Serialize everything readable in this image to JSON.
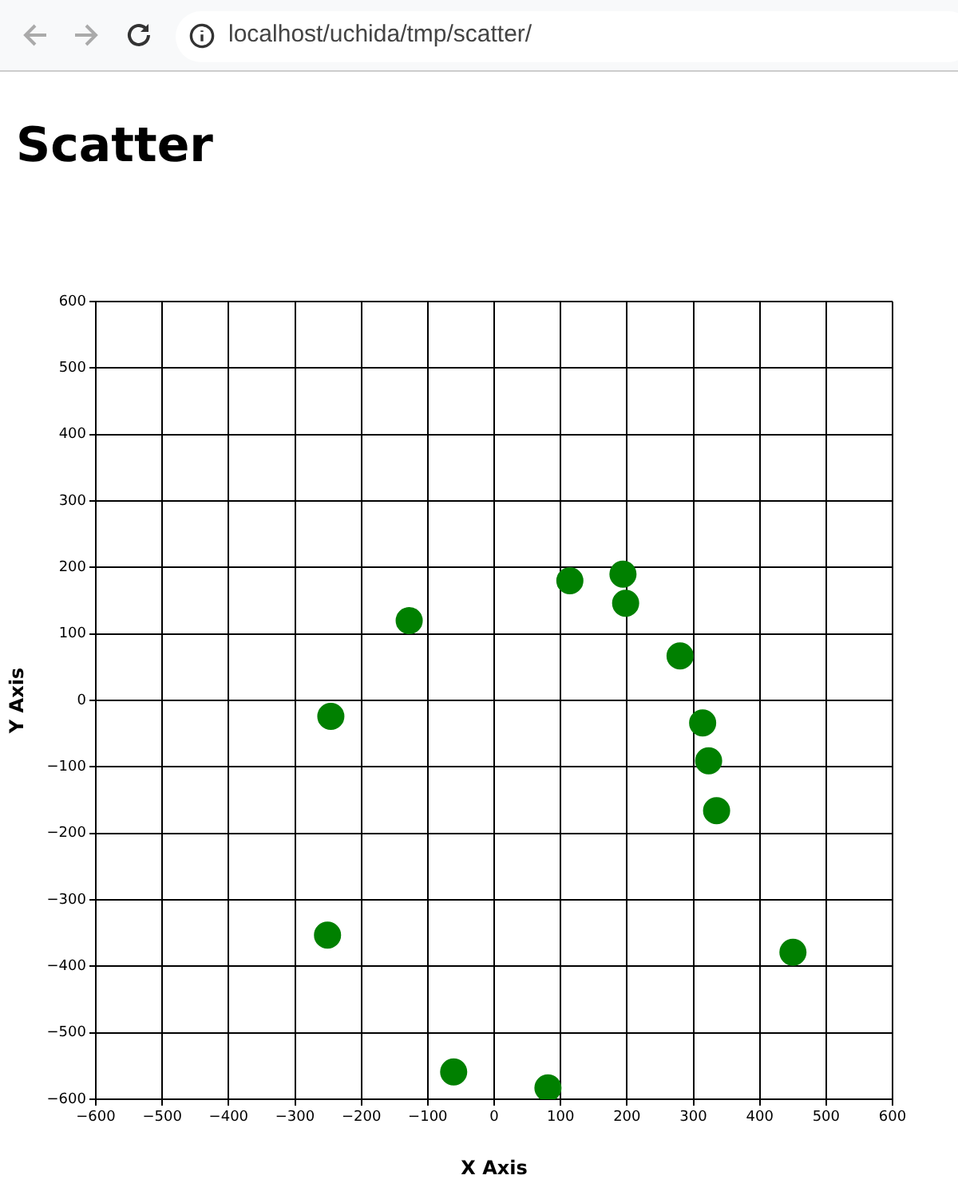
{
  "chart_data": {
    "type": "scatter",
    "title": "Scatter",
    "xlabel": "X Axis",
    "ylabel": "Y Axis",
    "annotations": [
      "localhost/uchida/tmp/scatter/"
    ],
    "x": [
      -246,
      -128,
      114,
      194,
      198,
      280,
      314,
      323,
      335,
      -251,
      -61,
      81,
      450
    ],
    "values": [
      -24,
      120,
      180,
      190,
      146,
      67,
      -34,
      -91,
      -166,
      -353,
      -559,
      -583,
      -379
    ],
    "color": "#008000",
    "marker": "circle",
    "grid": true,
    "legend": false,
    "xlim": [
      -600,
      600
    ],
    "ylim": [
      -600,
      600
    ],
    "xticks": [
      {
        "value": -600,
        "label": "−600"
      },
      {
        "value": -500,
        "label": "−500"
      },
      {
        "value": -400,
        "label": "−400"
      },
      {
        "value": -300,
        "label": "−300"
      },
      {
        "value": -200,
        "label": "−200"
      },
      {
        "value": -100,
        "label": "−100"
      },
      0,
      100,
      200,
      300,
      400,
      500,
      600
    ],
    "yticks": [
      {
        "value": -600,
        "label": "−600"
      },
      {
        "value": -500,
        "label": "−500"
      },
      {
        "value": -400,
        "label": "−400"
      },
      {
        "value": -300,
        "label": "−300"
      },
      {
        "value": -200,
        "label": "−200"
      },
      {
        "value": -100,
        "label": "−100"
      },
      0,
      100,
      200,
      300,
      400,
      500,
      600
    ]
  }
}
